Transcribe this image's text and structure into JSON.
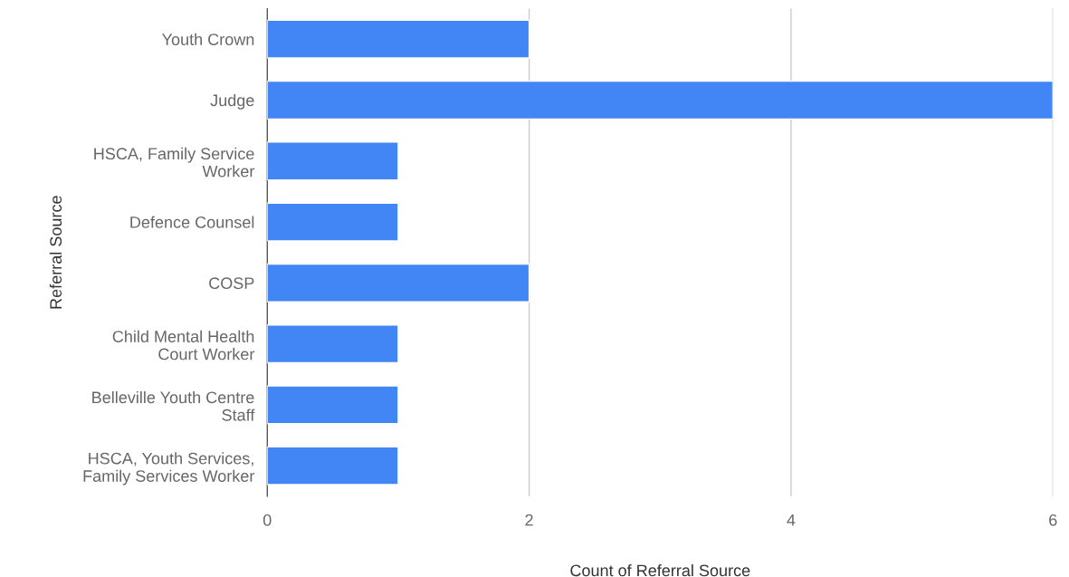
{
  "chart_data": {
    "type": "bar",
    "orientation": "horizontal",
    "categories": [
      "Youth Crown",
      "Judge",
      "HSCA, Family Service\nWorker",
      "Defence Counsel",
      "COSP",
      "Child Mental Health\nCourt Worker",
      "Belleville Youth Centre\nStaff",
      "HSCA, Youth Services,\nFamily Services Worker"
    ],
    "values": [
      2,
      6,
      1,
      1,
      2,
      1,
      1,
      1
    ],
    "color": "#4285f4",
    "xlim": [
      0,
      6
    ],
    "xticks": [
      0,
      2,
      4,
      6
    ],
    "xlabel": "Count of Referral Source",
    "ylabel": "Referral Source",
    "grid": "x"
  }
}
